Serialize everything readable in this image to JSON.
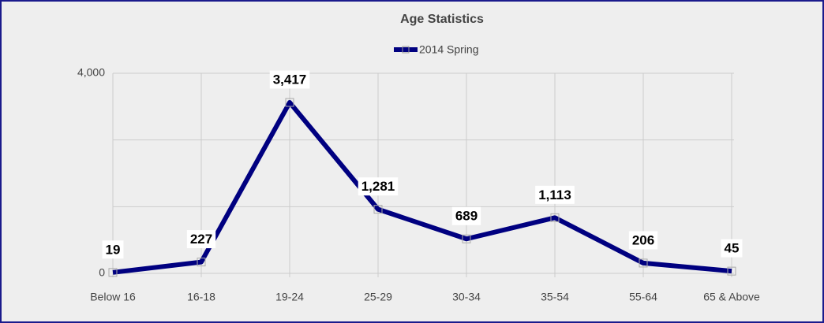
{
  "chart_data": {
    "type": "line",
    "title": "Age Statistics",
    "categories": [
      "Below 16",
      "16-18",
      "19-24",
      "25-29",
      "30-34",
      "35-54",
      "55-64",
      "65 & Above"
    ],
    "series": [
      {
        "name": "2014 Spring",
        "color": "#000080",
        "values": [
          19,
          227,
          3417,
          1281,
          689,
          1113,
          206,
          45
        ],
        "value_labels": [
          "19",
          "227",
          "3,417",
          "1,281",
          "689",
          "1,113",
          "206",
          "45"
        ]
      }
    ],
    "ylim": [
      0,
      4000
    ],
    "yticks": [
      0,
      {
        "value": 4000,
        "label": "4,000"
      }
    ],
    "ygrid": [
      1333,
      2667
    ],
    "grid": true,
    "legend": "top"
  }
}
